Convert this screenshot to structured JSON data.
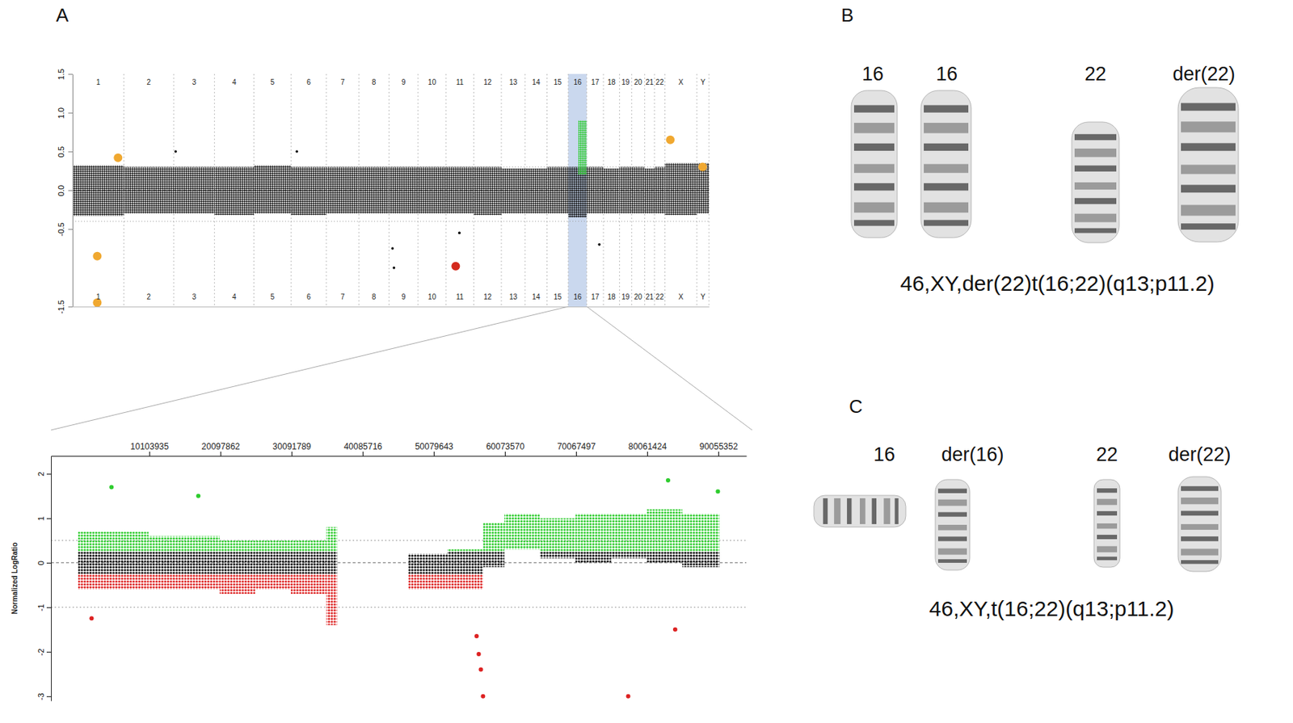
{
  "panel_labels": [
    "A",
    "B",
    "C"
  ],
  "chart_data": [
    {
      "type": "scatter",
      "xlim": [
        0,
        3093
      ],
      "ylim": [
        -1.5,
        1.5
      ],
      "yticks": [
        1.5,
        {
          "value": 1,
          "label": "1.0"
        },
        0.5,
        {
          "value": 0,
          "label": "0.0"
        },
        -0.5,
        -1.5
      ],
      "chromosomes": [
        "1",
        "2",
        "3",
        "4",
        "5",
        "6",
        "7",
        "8",
        "9",
        "10",
        "11",
        "12",
        "13",
        "14",
        "15",
        "16",
        "17",
        "18",
        "19",
        "20",
        "21",
        "22",
        "X",
        "Y"
      ],
      "lengths": [
        249,
        243,
        198,
        191,
        181,
        171,
        159,
        146,
        141,
        136,
        135,
        134,
        115,
        107,
        103,
        90,
        81,
        78,
        59,
        63,
        48,
        51,
        155,
        59
      ],
      "noise_low": [
        -0.33,
        -0.3,
        -0.3,
        -0.32,
        -0.3,
        -0.32,
        -0.3,
        -0.3,
        -0.3,
        -0.3,
        -0.3,
        -0.32,
        -0.3,
        -0.3,
        -0.3,
        -0.35,
        -0.3,
        -0.3,
        -0.3,
        -0.3,
        -0.3,
        -0.3,
        -0.32,
        -0.3
      ],
      "noise_high": [
        0.32,
        0.3,
        0.3,
        0.3,
        0.32,
        0.3,
        0.3,
        0.3,
        0.3,
        0.3,
        0.3,
        0.3,
        0.28,
        0.28,
        0.3,
        0.3,
        0.3,
        0.28,
        0.3,
        0.3,
        0.28,
        0.3,
        0.35,
        0.35
      ],
      "thresholds": [
        0.3,
        -0.4
      ],
      "highlight": {
        "start": 2409,
        "end": 2499
      },
      "gain": {
        "start": 2458,
        "end": 2499,
        "low": 0.2,
        "high": 0.9
      },
      "series": [
        {
          "color": "#000000",
          "marker": "point",
          "x": [
            501,
            1090,
            1555,
            1562,
            1880,
            2560
          ],
          "values": [
            0.5,
            0.5,
            -0.75,
            -1.0,
            -0.55,
            -0.7
          ]
        },
        {
          "color": "#f0a830",
          "marker": "circle",
          "x": [
            120,
            120,
            221,
            2905,
            3062
          ],
          "values": [
            -0.85,
            -1.45,
            0.42,
            0.65,
            0.3
          ]
        },
        {
          "color": "#d42a1e",
          "marker": "circle",
          "x": [
            1862
          ],
          "values": [
            -0.98
          ]
        }
      ]
    },
    {
      "type": "scatter",
      "y_label": "Normalized LogRatio",
      "xlim": [
        -3700000,
        94000000
      ],
      "xticks": [
        10103935,
        20097862,
        30091789,
        40085716,
        50079643,
        60073570,
        70067497,
        80061424,
        90055352
      ],
      "ylim": [
        -3.1,
        2.4
      ],
      "yticks": [
        2,
        1,
        0,
        -1,
        -2,
        -3
      ],
      "thresholds": [
        0.5,
        -1
      ],
      "gain_cutoff": 0.25,
      "loss_cutoff": -0.25,
      "starts": [
        100000,
        5000000,
        10000000,
        15000000,
        20000000,
        25000000,
        30000000,
        35000000,
        46500000,
        52000000,
        57000000,
        60000000,
        65000000,
        70000000,
        75000000,
        80000000,
        85000000
      ],
      "ends": [
        5000000,
        10000000,
        15000000,
        20000000,
        25000000,
        30000000,
        35000000,
        36500000,
        52000000,
        57000000,
        60000000,
        65000000,
        70000000,
        75000000,
        80000000,
        85000000,
        90200000
      ],
      "low": [
        -0.6,
        -0.6,
        -0.6,
        -0.6,
        -0.7,
        -0.6,
        -0.7,
        -1.4,
        -0.6,
        -0.6,
        -0.1,
        0.3,
        0.1,
        0.0,
        0.1,
        0.0,
        -0.1
      ],
      "high": [
        0.7,
        0.7,
        0.6,
        0.6,
        0.5,
        0.5,
        0.5,
        0.8,
        0.2,
        0.3,
        0.9,
        1.1,
        1.0,
        1.1,
        1.1,
        1.2,
        1.1
      ],
      "outliers": {
        "x": [
          4800000,
          17000000,
          56100000,
          56400000,
          56700000,
          57000000,
          84000000,
          77400000,
          83000000,
          90000000,
          2000000
        ],
        "values": [
          1.7,
          1.5,
          -1.65,
          -2.05,
          -2.4,
          -3.0,
          -1.5,
          -3.0,
          1.85,
          1.6,
          -1.25
        ],
        "colors": [
          "#2ecc2e",
          "#2ecc2e",
          "#dd2222",
          "#dd2222",
          "#dd2222",
          "#dd2222",
          "#dd2222",
          "#dd2222",
          "#2ecc2e",
          "#2ecc2e",
          "#dd2222"
        ]
      }
    }
  ],
  "karyotypes": [
    {
      "labels": [
        "16",
        "16",
        "22",
        "der(22)"
      ],
      "caption": "46,XY,der(22)t(16;22)(q13;p11.2)"
    },
    {
      "labels": [
        "16",
        "der(16)",
        "22",
        "der(22)"
      ],
      "caption": "46,XY,t(16;22)(q13;p11.2)"
    }
  ]
}
